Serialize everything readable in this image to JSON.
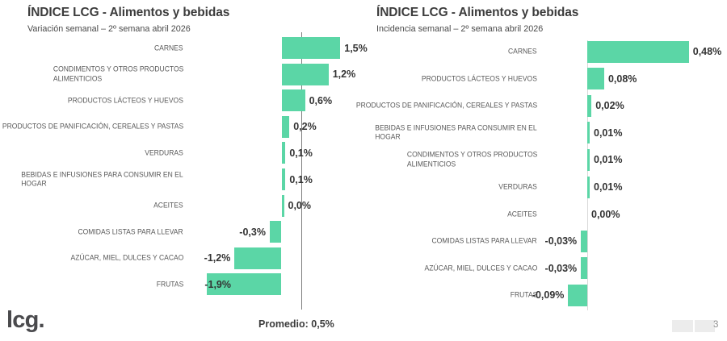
{
  "page": {
    "logo": "lcg.",
    "page_number": "3"
  },
  "colors": {
    "bar": "#5bd6a6",
    "reference_line": "#7d7d7d",
    "axis_line": "#d9d9d9"
  },
  "chart_data": [
    {
      "type": "bar",
      "orientation": "horizontal",
      "title": "ÍNDICE LCG - Alimentos y bebidas",
      "subtitle": "Variación semanal – 2º semana abril 2026",
      "unit": "%",
      "xlim": [
        -1.9,
        2.1
      ],
      "grid": false,
      "legend": false,
      "average": {
        "label": "Promedio: 0,5%",
        "value": 0.5
      },
      "items": [
        {
          "category": "CARNES",
          "value": 1.5,
          "label": "1,5%"
        },
        {
          "category": "CONDIMENTOS Y OTROS PRODUCTOS\nALIMENTICIOS",
          "value": 1.2,
          "label": "1,2%"
        },
        {
          "category": "PRODUCTOS LÁCTEOS Y HUEVOS",
          "value": 0.6,
          "label": "0,6%"
        },
        {
          "category": "PRODUCTOS DE PANIFICACIÓN, CEREALES Y PASTAS",
          "value": 0.2,
          "label": "0,2%"
        },
        {
          "category": "VERDURAS",
          "value": 0.1,
          "label": "0,1%"
        },
        {
          "category": "BEBIDAS E INFUSIONES PARA CONSUMIR EN EL\nHOGAR",
          "value": 0.1,
          "label": "0,1%"
        },
        {
          "category": "ACEITES",
          "value": 0.05,
          "label": "0,0%"
        },
        {
          "category": "COMIDAS LISTAS PARA LLEVAR",
          "value": -0.3,
          "label": "-0,3%"
        },
        {
          "category": "AZÚCAR, MIEL, DULCES Y CACAO",
          "value": -1.2,
          "label": "-1,2%"
        },
        {
          "category": "FRUTAS",
          "value": -1.9,
          "label": "-1,9%",
          "label_inside": true
        }
      ]
    },
    {
      "type": "bar",
      "orientation": "horizontal",
      "title": "ÍNDICE LCG - Alimentos y bebidas",
      "subtitle": "Incidencia semanal – 2º semana abril 2026",
      "unit": "%",
      "xlim": [
        -0.09,
        0.5
      ],
      "grid": false,
      "legend": false,
      "items": [
        {
          "category": "CARNES",
          "value": 0.48,
          "label": "0,48%"
        },
        {
          "category": "PRODUCTOS LÁCTEOS Y HUEVOS",
          "value": 0.08,
          "label": "0,08%"
        },
        {
          "category": "PRODUCTOS DE PANIFICACIÓN, CEREALES Y PASTAS",
          "value": 0.02,
          "label": "0,02%"
        },
        {
          "category": "BEBIDAS E INFUSIONES PARA CONSUMIR EN EL\nHOGAR",
          "value": 0.01,
          "label": "0,01%"
        },
        {
          "category": "CONDIMENTOS Y OTROS PRODUCTOS\nALIMENTICIOS",
          "value": 0.01,
          "label": "0,01%"
        },
        {
          "category": "VERDURAS",
          "value": 0.01,
          "label": "0,01%"
        },
        {
          "category": "ACEITES",
          "value": 0.0,
          "label": "0,00%"
        },
        {
          "category": "COMIDAS LISTAS PARA LLEVAR",
          "value": -0.03,
          "label": "-0,03%"
        },
        {
          "category": "AZÚCAR, MIEL, DULCES Y CACAO",
          "value": -0.03,
          "label": "-0,03%"
        },
        {
          "category": "FRUTAS",
          "value": -0.09,
          "label": "-0,09%"
        }
      ]
    }
  ]
}
